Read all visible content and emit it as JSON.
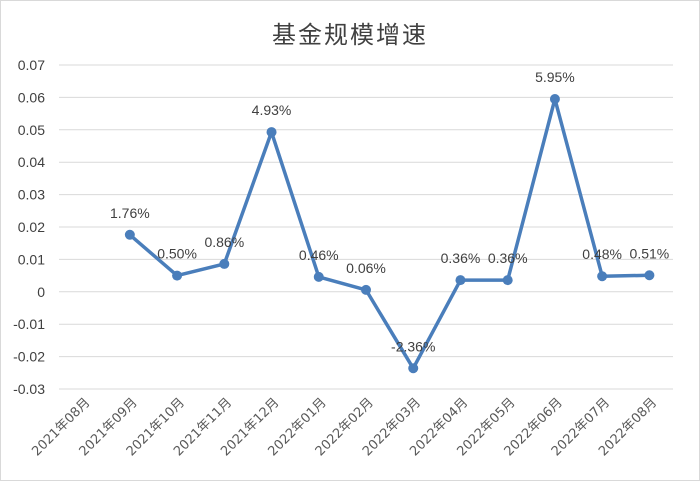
{
  "chart_data": {
    "type": "line",
    "title": "基金规模增速",
    "xlabel": "",
    "ylabel": "",
    "ylim": [
      -0.03,
      0.07
    ],
    "yticks": [
      "0.07",
      "0.06",
      "0.05",
      "0.04",
      "0.03",
      "0.02",
      "0.01",
      "0",
      "-0.01",
      "-0.02",
      "-0.03"
    ],
    "ytick_values": [
      0.07,
      0.06,
      0.05,
      0.04,
      0.03,
      0.02,
      0.01,
      0,
      -0.01,
      -0.02,
      -0.03
    ],
    "categories": [
      "2021年08月",
      "2021年09月",
      "2021年10月",
      "2021年11月",
      "2021年12月",
      "2022年01月",
      "2022年02月",
      "2022年03月",
      "2022年04月",
      "2022年05月",
      "2022年06月",
      "2022年07月",
      "2022年08月"
    ],
    "series": [
      {
        "values": [
          null,
          0.0176,
          0.005,
          0.0086,
          0.0493,
          0.0046,
          0.0006,
          -0.0236,
          0.0036,
          0.0036,
          0.0595,
          0.0048,
          0.0051
        ],
        "labels": [
          null,
          "1.76%",
          "0.50%",
          "0.86%",
          "4.93%",
          "0.46%",
          "0.06%",
          "-2.36%",
          "0.36%",
          "0.36%",
          "5.95%",
          "0.48%",
          "0.51%"
        ]
      }
    ],
    "grid": true,
    "legend": "none",
    "line_color": "#4a7ebb"
  }
}
